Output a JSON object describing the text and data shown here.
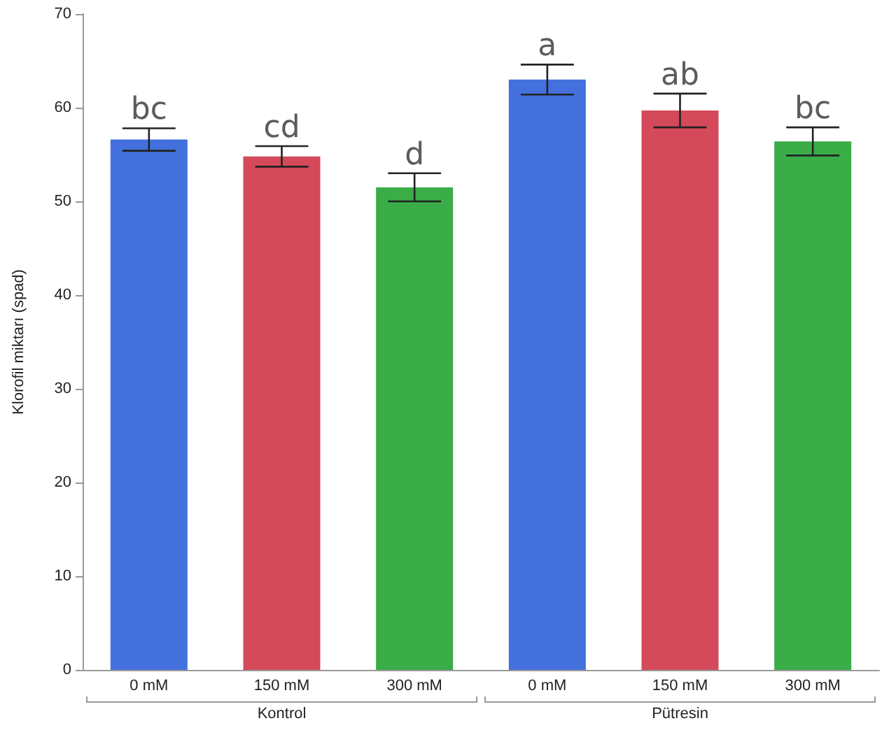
{
  "chart_data": {
    "type": "bar",
    "ylabel": "Klorofil miktarı (spad)",
    "categories": [
      "0 mM",
      "150 mM",
      "300 mM",
      "0 mM",
      "150 mM",
      "300 mM"
    ],
    "values": [
      56.6,
      54.8,
      51.5,
      63.0,
      59.7,
      56.4
    ],
    "errors": [
      1.2,
      1.1,
      1.5,
      1.6,
      1.8,
      1.5
    ],
    "colors": [
      "#4470dd",
      "#d44a5a",
      "#3aad48",
      "#4470dd",
      "#d44a5a",
      "#3aad48"
    ],
    "value_labels": [
      "bc",
      "cd",
      "d",
      "a",
      "ab",
      "bc"
    ],
    "annotations": [
      "Kontrol",
      "Pütresin"
    ],
    "ylim": [
      0,
      70
    ],
    "yticks": [
      0,
      10,
      20,
      30,
      40,
      50,
      60,
      70
    ],
    "grid": false
  }
}
